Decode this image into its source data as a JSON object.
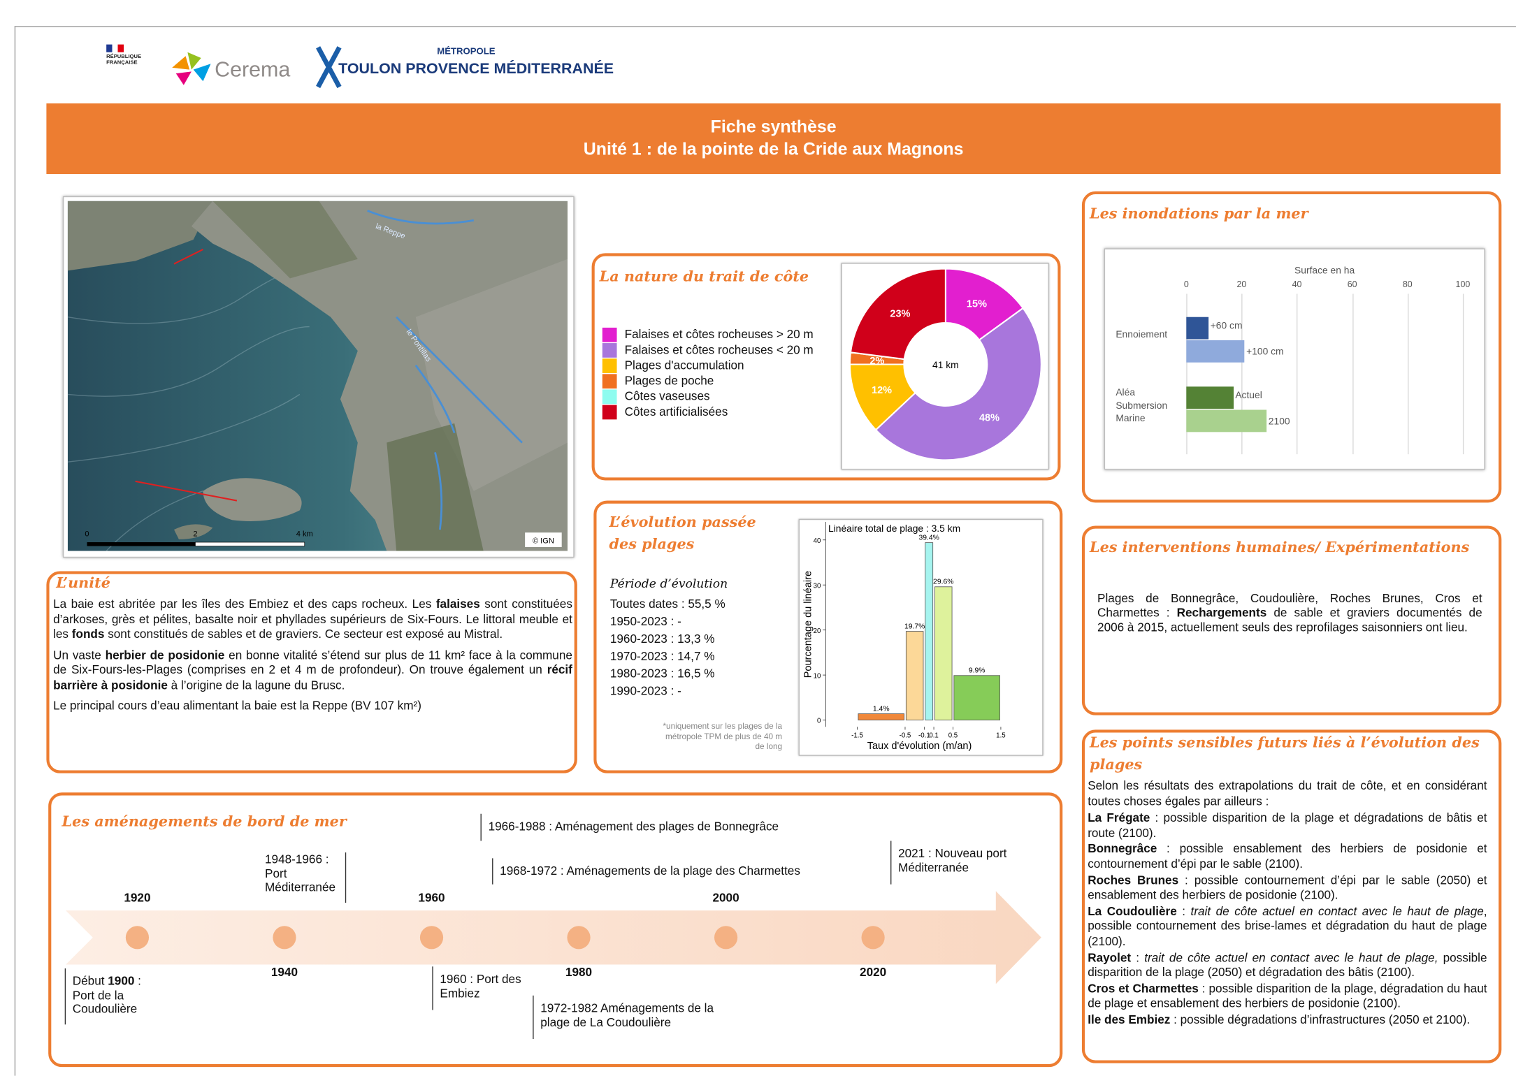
{
  "header": {
    "logos": [
      "RÉPUBLIQUE FRANÇAISE",
      "Cerema",
      "MÉTROPOLE",
      "TOULON PROVENCE MÉDITERRANÉE"
    ],
    "title": "Fiche synthèse",
    "subtitle": "Unité 1 : de la pointe de la Cride aux Magnons"
  },
  "map": {
    "labels": [
      "la Reppe",
      "le Pontillas"
    ],
    "scale": [
      "0",
      "2",
      "4 km"
    ],
    "credit": "© IGN"
  },
  "unite": {
    "heading": "L’unité",
    "paragraphs": [
      [
        {
          "text": "La baie est abritée par les îles des Embiez et des caps rocheux. Les "
        },
        {
          "text": "falaises",
          "style": "bold"
        },
        {
          "text": " sont constituées d’arkoses, grès et pélites, basalte noir et phyllades supérieurs de Six-Fours. Le littoral meuble et les "
        },
        {
          "text": "fonds",
          "style": "bold"
        },
        {
          "text": " sont constitués de sables et de graviers. Ce secteur est exposé au Mistral."
        }
      ],
      [
        {
          "text": "Un vaste "
        },
        {
          "text": "herbier de posidonie",
          "style": "bold"
        },
        {
          "text": " en bonne vitalité s’étend sur plus de 11 km² face à la commune de Six-Fours-les-Plages (comprises en 2 et 4 m de profondeur). On trouve également un "
        },
        {
          "text": "récif barrière à posidonie",
          "style": "bold"
        },
        {
          "text": " à l’origine de la lagune du Brusc."
        }
      ],
      [
        {
          "text": "Le principal cours d’eau alimentant la baie est la Reppe (BV 107 km²)"
        }
      ]
    ]
  },
  "nature": {
    "heading": "La nature du trait de côte"
  },
  "evolution": {
    "heading": "L’évolution passée des plages",
    "period_heading": "Période d’évolution",
    "periods": [
      "Toutes dates : 55,5 %",
      "1950-2023 : -",
      "1960-2023 : 13,3 %",
      "1970-2023 : 14,7 %",
      "1980-2023 : 16,5 %",
      "1990-2023 : -"
    ],
    "note": "*uniquement sur les plages de la métropole TPM de plus de 40 m de long"
  },
  "inondations": {
    "heading": "Les inondations par la mer"
  },
  "interventions": {
    "heading": "Les interventions humaines/ Expérimentations",
    "text": [
      {
        "text": "Plages de Bonnegrâce, Coudoulière, Roches Brunes, Cros et Charmettes : "
      },
      {
        "text": "Rechargements",
        "style": "bold"
      },
      {
        "text": " de sable et graviers documentés de 2006 à 2015, actuellement seuls des reprofilages saisonniers ont lieu."
      }
    ]
  },
  "points": {
    "heading": "Les points sensibles futurs liés à l’évolution des plages",
    "intro": "Selon les résultats des extrapolations du trait de côte, et en considérant toutes choses égales par ailleurs :",
    "items": [
      [
        {
          "text": "La Frégate",
          "style": "bold"
        },
        {
          "text": " : possible disparition de la plage et dégradations de bâtis et route (2100)."
        }
      ],
      [
        {
          "text": "Bonnegrâce",
          "style": "bold"
        },
        {
          "text": " : possible ensablement des herbiers de posidonie et contournement d’épi par le sable (2100)."
        }
      ],
      [
        {
          "text": "Roches Brunes",
          "style": "bold"
        },
        {
          "text": " : possible contournement d’épi par le sable (2050) et ensablement des herbiers de posidonie (2100)."
        }
      ],
      [
        {
          "text": "La Coudoulière",
          "style": "bold"
        },
        {
          "text": " : "
        },
        {
          "text": "trait de côte actuel en contact avec le haut de plage",
          "style": "italic"
        },
        {
          "text": ", possible contournement des brise-lames et dégradation du haut de plage (2100)."
        }
      ],
      [
        {
          "text": "Rayolet",
          "style": "bold"
        },
        {
          "text": " : "
        },
        {
          "text": "trait de côte actuel en contact avec le haut de plage,",
          "style": "italic"
        },
        {
          "text": " possible disparition de la plage (2050) et dégradation des bâtis (2100)."
        }
      ],
      [
        {
          "text": "Cros et Charmettes",
          "style": "bold"
        },
        {
          "text": " : possible disparition de la plage, dégradation du haut de plage et ensablement des herbiers de posidonie (2100)."
        }
      ],
      [
        {
          "text": "Ile des Embiez",
          "style": "bold"
        },
        {
          "text": " : possible dégradations d’infrastructures (2050 et 2100)."
        }
      ]
    ]
  },
  "amenagements": {
    "heading": "Les aménagements de bord de mer",
    "years": [
      "1920",
      "1940",
      "1960",
      "1980",
      "2000",
      "2020"
    ],
    "events": [
      [
        {
          "text": "Début "
        },
        {
          "text": "1900",
          "style": "bold"
        },
        {
          "text": " : Port de la Coudoulière"
        }
      ],
      [
        {
          "text": "1948-1966 : Port Méditerranée"
        }
      ],
      [
        {
          "text": "1960 : Port des Embiez"
        }
      ],
      [
        {
          "text": "1966-1988 : Aménagement des plages de Bonnegrâce"
        }
      ],
      [
        {
          "text": "1968-1972 : Aménagements de la plage des Charmettes"
        }
      ],
      [
        {
          "text": "1972-1982 Aménagements de la plage de La Coudoulière"
        }
      ],
      [
        {
          "text": "2021 : Nouveau port Méditerranée"
        }
      ]
    ]
  },
  "chart_data": [
    {
      "type": "donut",
      "categories": [
        "Falaises et côtes rocheuses > 20 m",
        "Falaises et côtes rocheuses < 20 m",
        "Plages d'accumulation",
        "Plages de poche",
        "Côtes vaseuses",
        "Côtes artificialisées"
      ],
      "values": [
        15,
        48,
        12,
        2,
        0,
        23
      ],
      "value_labels": [
        "15%",
        "48%",
        "12%",
        "2%",
        null,
        "23%"
      ],
      "colors": [
        "#e21fcf",
        "#a876dc",
        "#ffc000",
        "#f07020",
        "#8ffcef",
        "#d0001a"
      ],
      "center_label": "41 km"
    },
    {
      "type": "histogram",
      "title": "Linéaire total de plage : 3.5 km",
      "x_label": "Taux d'évolution (m/an)",
      "y_label": "Pourcentage du linéaire",
      "bins": [
        -1.5,
        -0.5,
        -0.1,
        0.1,
        0.5,
        1.5
      ],
      "values": [
        1.4,
        19.7,
        39.4,
        29.6,
        9.9
      ],
      "value_labels": [
        "1.4%",
        "19.7%",
        "39.4%",
        "29.6%",
        "9.9%"
      ],
      "colors": [
        "#f0883a",
        "#fcd898",
        "#a6f4ef",
        "#def29c",
        "#86cc58"
      ],
      "xlim": [
        -2.2,
        1.8
      ],
      "ylim": [
        -1.5,
        44
      ],
      "xticks": [
        -1.5,
        -0.5,
        -0.1,
        0.1,
        0.5,
        1.5
      ],
      "yticks": [
        0,
        10,
        20,
        30,
        40
      ]
    },
    {
      "type": "bar",
      "orientation": "horizontal",
      "x_label": "Surface en ha",
      "xlim": [
        0,
        100
      ],
      "xticks": [
        0,
        20,
        40,
        60,
        80,
        100
      ],
      "grid": true,
      "categories": [
        "Ennoiement",
        "Aléa Submersion Marine"
      ],
      "bars": [
        [
          {
            "name": "+60 cm",
            "color": "#2f5597",
            "value": 8
          },
          {
            "name": "+100 cm",
            "color": "#8faadc",
            "value": 21
          }
        ],
        [
          {
            "name": "Actuel",
            "color": "#548235",
            "value": 17
          },
          {
            "name": "2100",
            "color": "#a9d18e",
            "value": 29
          }
        ]
      ]
    }
  ]
}
